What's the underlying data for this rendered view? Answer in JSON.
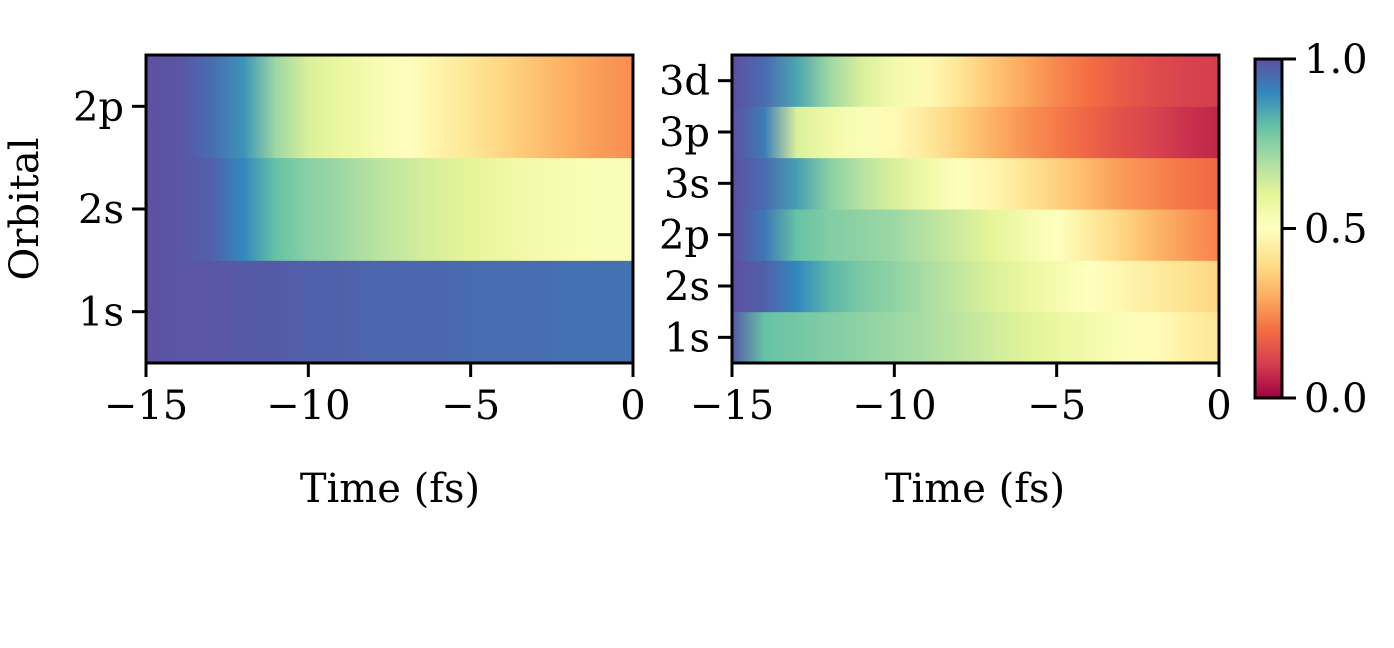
{
  "chart_data": [
    {
      "type": "heatmap",
      "xlabel": "Time (fs)",
      "ylabel": "Orbital",
      "xlim": [
        -15,
        0
      ],
      "xticks": [
        -15,
        -10,
        -5,
        0
      ],
      "xtick_labels": [
        "−15",
        "−10",
        "−5",
        "0"
      ],
      "rows": [
        "1s",
        "2s",
        "2p"
      ],
      "x": [
        -15,
        -14,
        -13,
        -12,
        -11,
        -10,
        -9,
        -8,
        -7,
        -6,
        -5,
        -4,
        -3,
        -2,
        -1,
        0
      ],
      "z": {
        "1s": [
          1.0,
          0.99,
          0.99,
          0.98,
          0.98,
          0.97,
          0.97,
          0.96,
          0.96,
          0.96,
          0.95,
          0.95,
          0.95,
          0.94,
          0.94,
          0.94
        ],
        "2s": [
          1.0,
          0.99,
          0.97,
          0.9,
          0.8,
          0.75,
          0.72,
          0.68,
          0.65,
          0.62,
          0.6,
          0.57,
          0.55,
          0.53,
          0.52,
          0.52
        ],
        "2p": [
          1.0,
          0.99,
          0.95,
          0.88,
          0.72,
          0.62,
          0.58,
          0.54,
          0.5,
          0.46,
          0.42,
          0.38,
          0.34,
          0.3,
          0.27,
          0.25
        ]
      }
    },
    {
      "type": "heatmap",
      "xlabel": "Time (fs)",
      "ylabel": "",
      "xlim": [
        -15,
        0
      ],
      "xticks": [
        -15,
        -10,
        -5,
        0
      ],
      "xtick_labels": [
        "−15",
        "−10",
        "−5",
        "0"
      ],
      "rows": [
        "1s",
        "2s",
        "2p",
        "3s",
        "3p",
        "3d"
      ],
      "x": [
        -15,
        -14,
        -13,
        -12,
        -11,
        -10,
        -9,
        -8,
        -7,
        -6,
        -5,
        -4,
        -3,
        -2,
        -1,
        0
      ],
      "z": {
        "1s": [
          0.98,
          0.8,
          0.78,
          0.76,
          0.74,
          0.72,
          0.7,
          0.67,
          0.64,
          0.61,
          0.58,
          0.55,
          0.52,
          0.49,
          0.45,
          0.42
        ],
        "2s": [
          1.0,
          0.97,
          0.9,
          0.82,
          0.77,
          0.74,
          0.7,
          0.66,
          0.62,
          0.58,
          0.54,
          0.5,
          0.47,
          0.44,
          0.41,
          0.38
        ],
        "2p": [
          1.0,
          0.93,
          0.8,
          0.76,
          0.74,
          0.72,
          0.68,
          0.64,
          0.6,
          0.55,
          0.5,
          0.44,
          0.38,
          0.32,
          0.27,
          0.23
        ],
        "3s": [
          1.0,
          0.95,
          0.86,
          0.75,
          0.68,
          0.62,
          0.56,
          0.51,
          0.47,
          0.42,
          0.37,
          0.32,
          0.27,
          0.24,
          0.21,
          0.19
        ],
        "3p": [
          1.0,
          0.92,
          0.62,
          0.56,
          0.52,
          0.48,
          0.43,
          0.37,
          0.31,
          0.26,
          0.22,
          0.18,
          0.14,
          0.11,
          0.08,
          0.06
        ],
        "3d": [
          1.0,
          0.95,
          0.85,
          0.72,
          0.62,
          0.55,
          0.48,
          0.42,
          0.35,
          0.29,
          0.24,
          0.2,
          0.16,
          0.13,
          0.11,
          0.1
        ]
      }
    }
  ],
  "colorbar": {
    "colormap": "Spectral",
    "range": [
      0.0,
      1.0
    ],
    "ticks": [
      0.0,
      0.5,
      1.0
    ],
    "tick_labels": [
      "0.0",
      "0.5",
      "1.0"
    ],
    "colors": [
      "#9e0142",
      "#d53e4f",
      "#f46d43",
      "#fdae61",
      "#fee08b",
      "#ffffbf",
      "#e6f598",
      "#abdda4",
      "#66c2a5",
      "#3288bd",
      "#5e4fa2"
    ]
  }
}
